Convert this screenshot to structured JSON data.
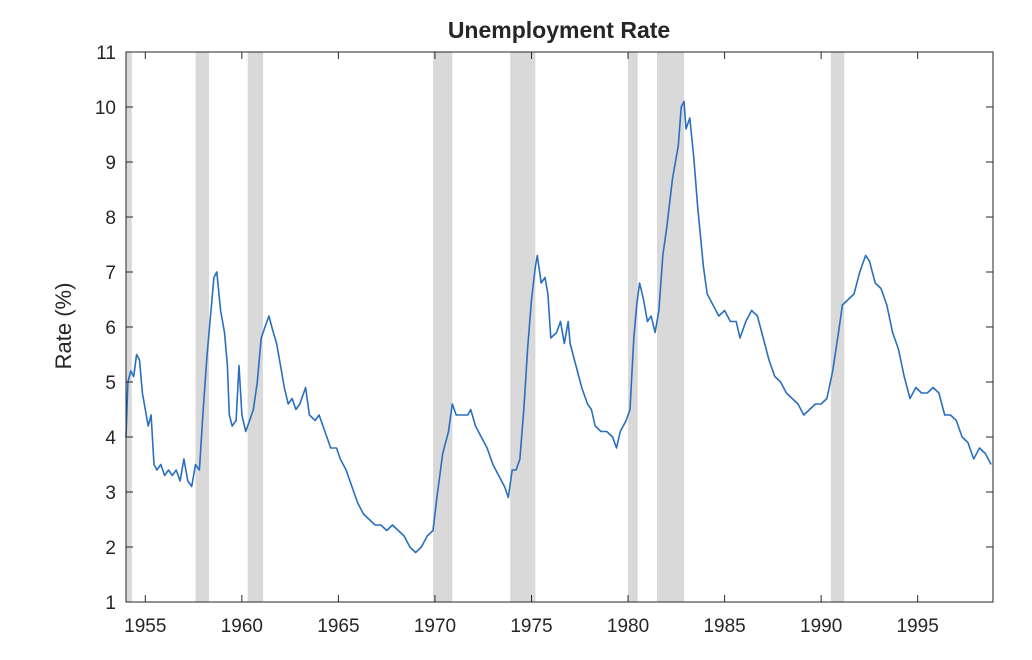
{
  "chart_data": {
    "type": "line",
    "title": "Unemployment Rate",
    "xlabel": "",
    "ylabel": "Rate (%)",
    "xlim": [
      1954.0,
      1998.9
    ],
    "ylim": [
      1,
      11
    ],
    "xticks": [
      1955,
      1960,
      1965,
      1970,
      1975,
      1980,
      1985,
      1990,
      1995
    ],
    "yticks": [
      1,
      2,
      3,
      4,
      5,
      6,
      7,
      8,
      9,
      10,
      11
    ],
    "grid": false,
    "legend": "none",
    "series": [
      {
        "color": "#2a6fbf",
        "points": [
          [
            1954.0,
            4.0
          ],
          [
            1954.1,
            5.0
          ],
          [
            1954.25,
            5.2
          ],
          [
            1954.4,
            5.1
          ],
          [
            1954.55,
            5.5
          ],
          [
            1954.7,
            5.4
          ],
          [
            1954.85,
            4.8
          ],
          [
            1955.0,
            4.5
          ],
          [
            1955.15,
            4.2
          ],
          [
            1955.3,
            4.4
          ],
          [
            1955.45,
            3.5
          ],
          [
            1955.6,
            3.4
          ],
          [
            1955.8,
            3.5
          ],
          [
            1956.0,
            3.3
          ],
          [
            1956.2,
            3.4
          ],
          [
            1956.4,
            3.3
          ],
          [
            1956.6,
            3.4
          ],
          [
            1956.8,
            3.2
          ],
          [
            1957.0,
            3.6
          ],
          [
            1957.2,
            3.2
          ],
          [
            1957.4,
            3.1
          ],
          [
            1957.6,
            3.5
          ],
          [
            1957.8,
            3.4
          ],
          [
            1958.0,
            4.5
          ],
          [
            1958.2,
            5.5
          ],
          [
            1958.4,
            6.3
          ],
          [
            1958.55,
            6.9
          ],
          [
            1958.7,
            7.0
          ],
          [
            1958.9,
            6.3
          ],
          [
            1959.1,
            5.9
          ],
          [
            1959.25,
            5.3
          ],
          [
            1959.35,
            4.4
          ],
          [
            1959.5,
            4.2
          ],
          [
            1959.7,
            4.3
          ],
          [
            1959.85,
            5.3
          ],
          [
            1960.0,
            4.4
          ],
          [
            1960.2,
            4.1
          ],
          [
            1960.4,
            4.3
          ],
          [
            1960.6,
            4.5
          ],
          [
            1960.8,
            5.0
          ],
          [
            1961.0,
            5.8
          ],
          [
            1961.2,
            6.0
          ],
          [
            1961.4,
            6.2
          ],
          [
            1961.55,
            6.0
          ],
          [
            1961.8,
            5.7
          ],
          [
            1962.0,
            5.3
          ],
          [
            1962.2,
            4.9
          ],
          [
            1962.4,
            4.6
          ],
          [
            1962.6,
            4.7
          ],
          [
            1962.8,
            4.5
          ],
          [
            1963.0,
            4.6
          ],
          [
            1963.3,
            4.9
          ],
          [
            1963.5,
            4.4
          ],
          [
            1963.8,
            4.3
          ],
          [
            1964.0,
            4.4
          ],
          [
            1964.3,
            4.1
          ],
          [
            1964.6,
            3.8
          ],
          [
            1964.9,
            3.8
          ],
          [
            1965.1,
            3.6
          ],
          [
            1965.4,
            3.4
          ],
          [
            1965.7,
            3.1
          ],
          [
            1966.0,
            2.8
          ],
          [
            1966.3,
            2.6
          ],
          [
            1966.6,
            2.5
          ],
          [
            1966.9,
            2.4
          ],
          [
            1967.2,
            2.4
          ],
          [
            1967.5,
            2.3
          ],
          [
            1967.8,
            2.4
          ],
          [
            1968.1,
            2.3
          ],
          [
            1968.4,
            2.2
          ],
          [
            1968.7,
            2.0
          ],
          [
            1969.0,
            1.9
          ],
          [
            1969.3,
            2.0
          ],
          [
            1969.6,
            2.2
          ],
          [
            1969.9,
            2.3
          ],
          [
            1970.1,
            2.9
          ],
          [
            1970.4,
            3.7
          ],
          [
            1970.7,
            4.1
          ],
          [
            1970.9,
            4.6
          ],
          [
            1971.1,
            4.4
          ],
          [
            1971.4,
            4.4
          ],
          [
            1971.7,
            4.4
          ],
          [
            1971.85,
            4.5
          ],
          [
            1972.1,
            4.2
          ],
          [
            1972.4,
            4.0
          ],
          [
            1972.7,
            3.8
          ],
          [
            1973.0,
            3.5
          ],
          [
            1973.3,
            3.3
          ],
          [
            1973.6,
            3.1
          ],
          [
            1973.8,
            2.9
          ],
          [
            1974.0,
            3.4
          ],
          [
            1974.2,
            3.4
          ],
          [
            1974.4,
            3.6
          ],
          [
            1974.6,
            4.5
          ],
          [
            1974.8,
            5.6
          ],
          [
            1975.0,
            6.5
          ],
          [
            1975.2,
            7.1
          ],
          [
            1975.3,
            7.3
          ],
          [
            1975.5,
            6.8
          ],
          [
            1975.7,
            6.9
          ],
          [
            1975.85,
            6.6
          ],
          [
            1976.0,
            5.8
          ],
          [
            1976.3,
            5.9
          ],
          [
            1976.5,
            6.1
          ],
          [
            1976.7,
            5.7
          ],
          [
            1976.9,
            6.1
          ],
          [
            1977.0,
            5.7
          ],
          [
            1977.3,
            5.3
          ],
          [
            1977.6,
            4.9
          ],
          [
            1977.9,
            4.6
          ],
          [
            1978.1,
            4.5
          ],
          [
            1978.3,
            4.2
          ],
          [
            1978.6,
            4.1
          ],
          [
            1978.9,
            4.1
          ],
          [
            1979.2,
            4.0
          ],
          [
            1979.4,
            3.8
          ],
          [
            1979.6,
            4.1
          ],
          [
            1979.9,
            4.3
          ],
          [
            1980.1,
            4.5
          ],
          [
            1980.3,
            5.8
          ],
          [
            1980.45,
            6.4
          ],
          [
            1980.6,
            6.8
          ],
          [
            1980.8,
            6.5
          ],
          [
            1981.0,
            6.1
          ],
          [
            1981.2,
            6.2
          ],
          [
            1981.4,
            5.9
          ],
          [
            1981.6,
            6.3
          ],
          [
            1981.8,
            7.3
          ],
          [
            1982.0,
            7.8
          ],
          [
            1982.3,
            8.7
          ],
          [
            1982.6,
            9.3
          ],
          [
            1982.75,
            10.0
          ],
          [
            1982.9,
            10.1
          ],
          [
            1983.0,
            9.6
          ],
          [
            1983.2,
            9.8
          ],
          [
            1983.4,
            9.1
          ],
          [
            1983.6,
            8.2
          ],
          [
            1983.9,
            7.1
          ],
          [
            1984.1,
            6.6
          ],
          [
            1984.4,
            6.4
          ],
          [
            1984.7,
            6.2
          ],
          [
            1985.0,
            6.3
          ],
          [
            1985.3,
            6.1
          ],
          [
            1985.6,
            6.1
          ],
          [
            1985.8,
            5.8
          ],
          [
            1986.1,
            6.1
          ],
          [
            1986.4,
            6.3
          ],
          [
            1986.7,
            6.2
          ],
          [
            1987.0,
            5.8
          ],
          [
            1987.3,
            5.4
          ],
          [
            1987.6,
            5.1
          ],
          [
            1987.9,
            5.0
          ],
          [
            1988.2,
            4.8
          ],
          [
            1988.5,
            4.7
          ],
          [
            1988.8,
            4.6
          ],
          [
            1989.1,
            4.4
          ],
          [
            1989.4,
            4.5
          ],
          [
            1989.7,
            4.6
          ],
          [
            1990.0,
            4.6
          ],
          [
            1990.3,
            4.7
          ],
          [
            1990.6,
            5.2
          ],
          [
            1990.9,
            5.9
          ],
          [
            1991.1,
            6.4
          ],
          [
            1991.4,
            6.5
          ],
          [
            1991.7,
            6.6
          ],
          [
            1992.0,
            7.0
          ],
          [
            1992.3,
            7.3
          ],
          [
            1992.5,
            7.2
          ],
          [
            1992.8,
            6.8
          ],
          [
            1993.1,
            6.7
          ],
          [
            1993.4,
            6.4
          ],
          [
            1993.7,
            5.9
          ],
          [
            1994.0,
            5.6
          ],
          [
            1994.3,
            5.1
          ],
          [
            1994.6,
            4.7
          ],
          [
            1994.9,
            4.9
          ],
          [
            1995.2,
            4.8
          ],
          [
            1995.5,
            4.8
          ],
          [
            1995.8,
            4.9
          ],
          [
            1996.1,
            4.8
          ],
          [
            1996.4,
            4.4
          ],
          [
            1996.7,
            4.4
          ],
          [
            1997.0,
            4.3
          ],
          [
            1997.3,
            4.0
          ],
          [
            1997.6,
            3.9
          ],
          [
            1997.9,
            3.6
          ],
          [
            1998.2,
            3.8
          ],
          [
            1998.5,
            3.7
          ],
          [
            1998.8,
            3.5
          ]
        ]
      }
    ],
    "recession_bands": [
      [
        1954.0,
        1954.3
      ],
      [
        1957.6,
        1958.3
      ],
      [
        1960.3,
        1961.1
      ],
      [
        1969.9,
        1970.9
      ],
      [
        1973.9,
        1975.2
      ],
      [
        1980.0,
        1980.5
      ],
      [
        1981.5,
        1982.9
      ],
      [
        1990.5,
        1991.2
      ]
    ],
    "colors": {
      "band": "#d9d9d9",
      "axis": "#262626"
    }
  }
}
